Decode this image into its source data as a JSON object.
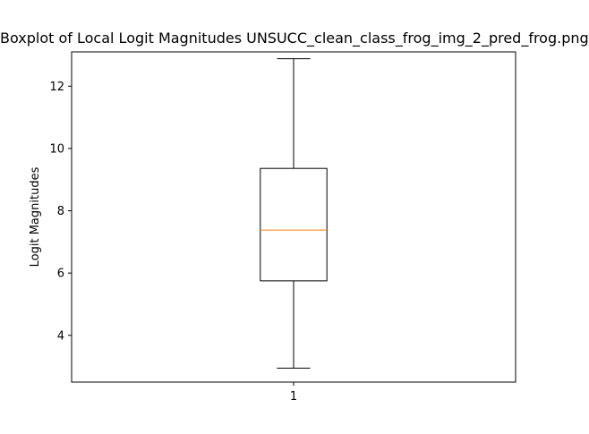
{
  "chart_data": {
    "type": "boxplot",
    "title": "Boxplot of Local Logit Magnitudes UNSUCC_clean_class_frog_img_2_pred_frog.png",
    "xlabel": "",
    "ylabel": "Logit Magnitudes",
    "categories": [
      "1"
    ],
    "ylim": [
      2.5,
      13.1
    ],
    "yticks": [
      4,
      6,
      8,
      10,
      12
    ],
    "boxes": [
      {
        "category": "1",
        "whisker_low": 2.95,
        "q1": 5.75,
        "median": 7.38,
        "q3": 9.36,
        "whisker_high": 12.88
      }
    ],
    "grid": false,
    "colors": {
      "box": "#000000",
      "median": "#ff7f0e",
      "axes": "#000000"
    }
  }
}
